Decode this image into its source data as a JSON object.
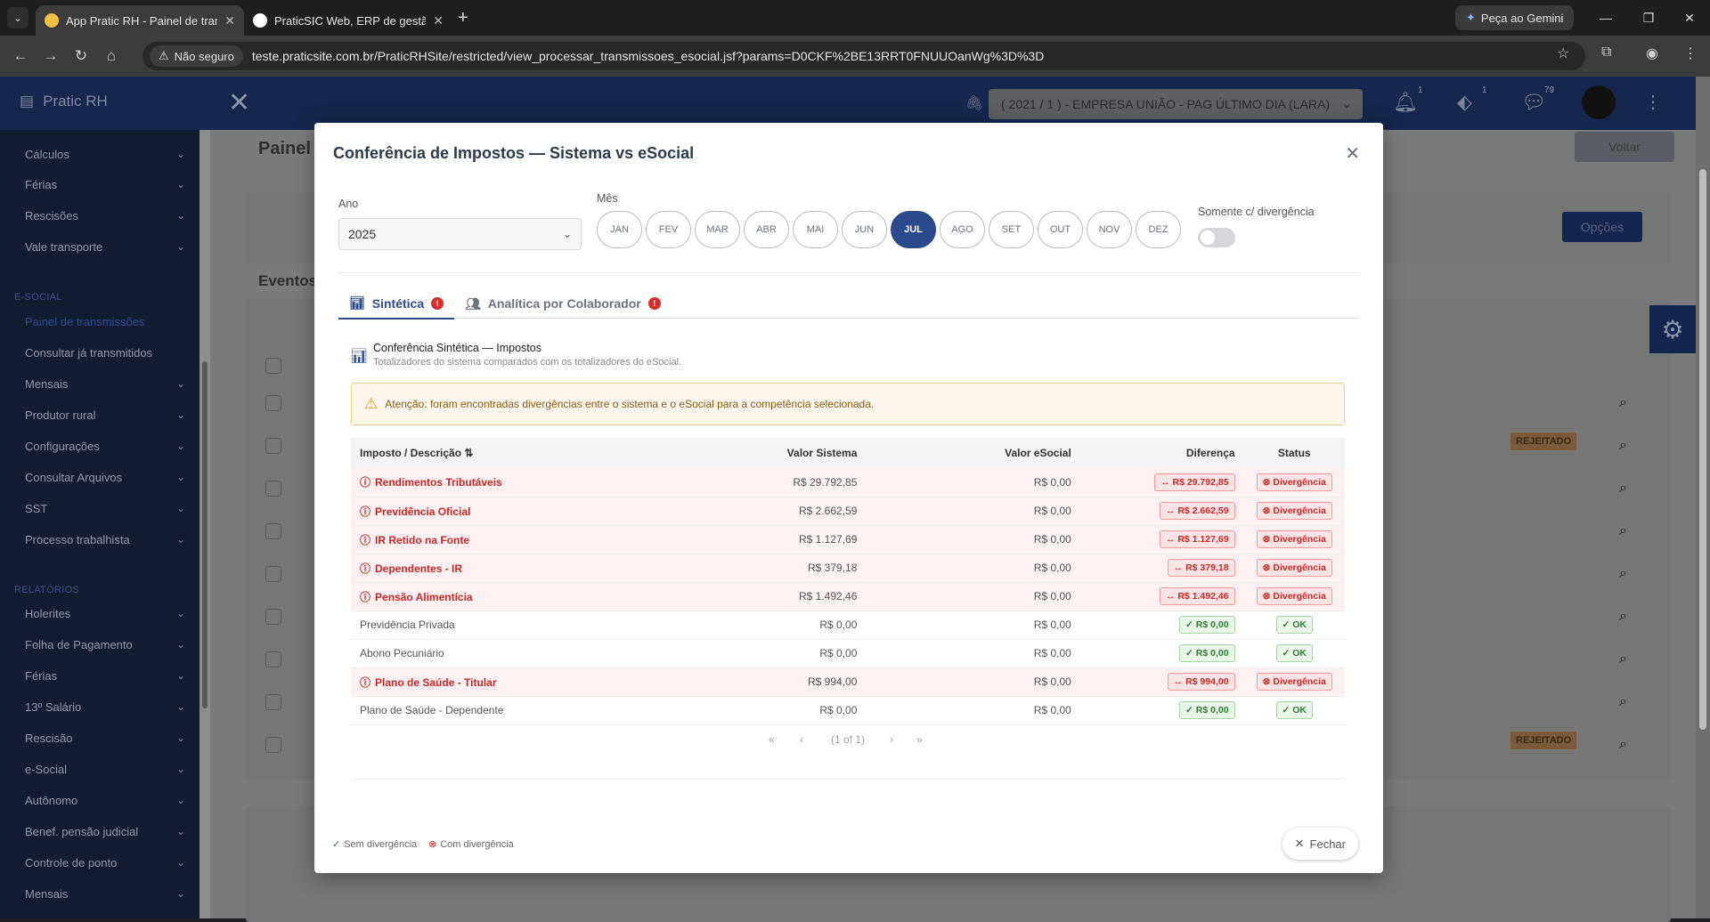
{
  "browser": {
    "tabs": [
      {
        "title": "App Pratic RH - Painel de transmissões",
        "active": true
      },
      {
        "title": "PraticSIC Web, ERP de gestão empresarial",
        "active": false
      }
    ],
    "gemini_label": "Peça ao Gemini",
    "not_secure": "Não seguro",
    "url": "teste.praticsite.com.br/PraticRHSite/restricted/view_processar_transmissoes_esocial.jsf?params=D0CKF%2BE13RRT0FNUUOanWg%3D%3D"
  },
  "app": {
    "brand": "Pratic RH",
    "company_select": "( 2021 / 1 ) - EMPRESA UNIÃO - PAG ÚLTIMO DIA (LARA)",
    "badges": {
      "notifications": "1",
      "tags": "1",
      "messages": "79"
    },
    "page_title": "Painel",
    "voltar_label": "Voltar",
    "opcoes_label": "Opções",
    "eventos_label": "Eventos",
    "rejeitado": "REJEITADO"
  },
  "sidebar": {
    "top_items": [
      {
        "label": "Cálculos"
      },
      {
        "label": "Férias"
      },
      {
        "label": "Rescisões"
      },
      {
        "label": "Vale transporte"
      }
    ],
    "esocial_section": "E-SOCIAL",
    "esocial_items": [
      {
        "label": "Painel de transmissões"
      },
      {
        "label": "Consultar já transmitidos"
      },
      {
        "label": "Mensais"
      },
      {
        "label": "Produtor rural"
      },
      {
        "label": "Configurações"
      },
      {
        "label": "Consultar Arquivos"
      },
      {
        "label": "SST"
      },
      {
        "label": "Processo trabalhista"
      }
    ],
    "relatorios_section": "RELATÓRIOS",
    "relatorios_items": [
      {
        "label": "Holerites"
      },
      {
        "label": "Folha de Pagamento"
      },
      {
        "label": "Férias"
      },
      {
        "label": "13º Salário"
      },
      {
        "label": "Rescisão"
      },
      {
        "label": "e-Social"
      },
      {
        "label": "Autônomo"
      },
      {
        "label": "Benef. pensão judicial"
      },
      {
        "label": "Controle de ponto"
      },
      {
        "label": "Mensais"
      }
    ]
  },
  "modal": {
    "title": "Conferência de Impostos — Sistema vs eSocial",
    "ano_label": "Ano",
    "ano_value": "2025",
    "mes_label": "Mês",
    "months": [
      "JAN",
      "FEV",
      "MAR",
      "ABR",
      "MAI",
      "JUN",
      "JUL",
      "AGO",
      "SET",
      "OUT",
      "NOV",
      "DEZ"
    ],
    "selected_month": "JUL",
    "divergencia_toggle_label": "Somente c/ divergência",
    "tabs": {
      "sintetica": "Sintética",
      "analitica": "Analítica por Colaborador"
    },
    "section_title": "Conferência Sintética — Impostos",
    "section_subtitle": "Totalizadores do sistema comparados com os totalizadores do eSocial.",
    "alert": "Atenção: foram encontradas divergências entre o sistema e o eSocial para a competência selecionada.",
    "columns": {
      "imposto": "Imposto / Descrição",
      "sistema": "Valor Sistema",
      "esocial": "Valor eSocial",
      "diferenca": "Diferença",
      "status": "Status"
    },
    "rows": [
      {
        "name": "Rendimentos Tributáveis",
        "sistema": "R$  29.792,85",
        "esocial": "R$  0,00",
        "diferenca": "↔ R$  29.792,85",
        "status": "Divergência"
      },
      {
        "name": "Previdência Oficial",
        "sistema": "R$  2.662,59",
        "esocial": "R$  0,00",
        "diferenca": "↔ R$  2.662,59",
        "status": "Divergência"
      },
      {
        "name": "IR Retido na Fonte",
        "sistema": "R$  1.127,69",
        "esocial": "R$  0,00",
        "diferenca": "↔ R$  1.127,69",
        "status": "Divergência"
      },
      {
        "name": "Dependentes - IR",
        "sistema": "R$  379,18",
        "esocial": "R$  0,00",
        "diferenca": "↔ R$  379,18",
        "status": "Divergência"
      },
      {
        "name": "Pensão Alimentícia",
        "sistema": "R$  1.492,46",
        "esocial": "R$  0,00",
        "diferenca": "↔ R$  1.492,46",
        "status": "Divergência"
      },
      {
        "name": "Previdência Privada",
        "sistema": "R$  0,00",
        "esocial": "R$  0,00",
        "diferenca": "✓ R$  0,00",
        "status": "OK"
      },
      {
        "name": "Abono Pecuniário",
        "sistema": "R$  0,00",
        "esocial": "R$  0,00",
        "diferenca": "✓ R$  0,00",
        "status": "OK"
      },
      {
        "name": "Plano de Saúde - Titular",
        "sistema": "R$  994,00",
        "esocial": "R$  0,00",
        "diferenca": "↔ R$  994,00",
        "status": "Divergência"
      },
      {
        "name": "Plano de Saúde - Dependente",
        "sistema": "R$  0,00",
        "esocial": "R$  0,00",
        "diferenca": "✓ R$  0,00",
        "status": "OK"
      }
    ],
    "pagination": "(1 of 1)",
    "legend_ok": "Sem divergência",
    "legend_div": "Com divergência",
    "fechar_label": "Fechar"
  }
}
